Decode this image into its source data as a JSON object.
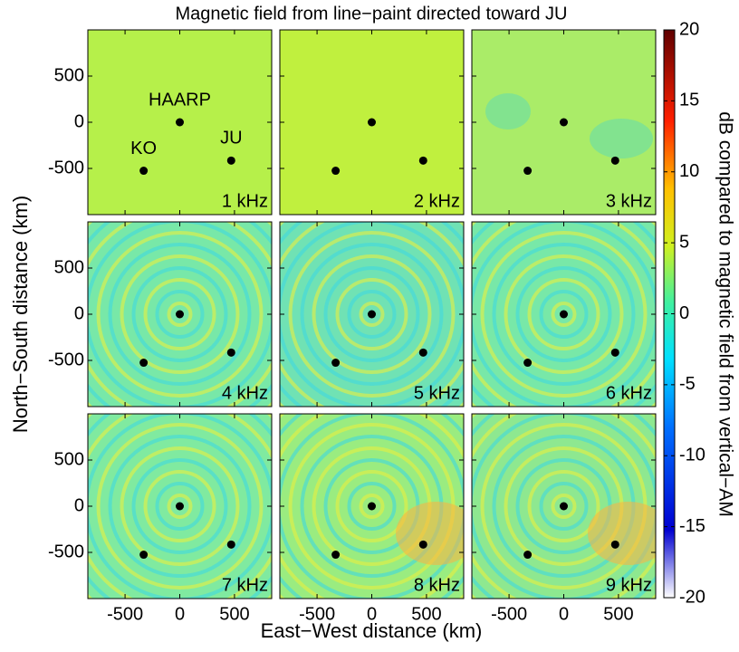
{
  "chart_data": {
    "type": "heatmap",
    "title": "Magnetic field from line−paint directed toward JU",
    "x_label": "East−West distance (km)",
    "y_label": "North−South distance (km)",
    "xlim": [
      -840,
      840
    ],
    "ylim": [
      -1000,
      1000
    ],
    "xticks": [
      -500,
      0,
      500
    ],
    "yticks": [
      -500,
      0,
      500
    ],
    "panels": [
      "1 kHz",
      "2 kHz",
      "3 kHz",
      "4 kHz",
      "5 kHz",
      "6 kHz",
      "7 kHz",
      "8 kHz",
      "9 kHz"
    ],
    "stations": {
      "names": [
        "HAARP",
        "KO",
        "JU"
      ],
      "x": [
        0,
        -330,
        470
      ],
      "y": [
        0,
        -525,
        -415
      ]
    },
    "colorbar": {
      "label": "dB compared to magnetic field from vertical−AM",
      "lim": [
        -20,
        20
      ],
      "ticks": [
        -20,
        -15,
        -10,
        -5,
        0,
        5,
        10,
        15,
        20
      ]
    }
  }
}
